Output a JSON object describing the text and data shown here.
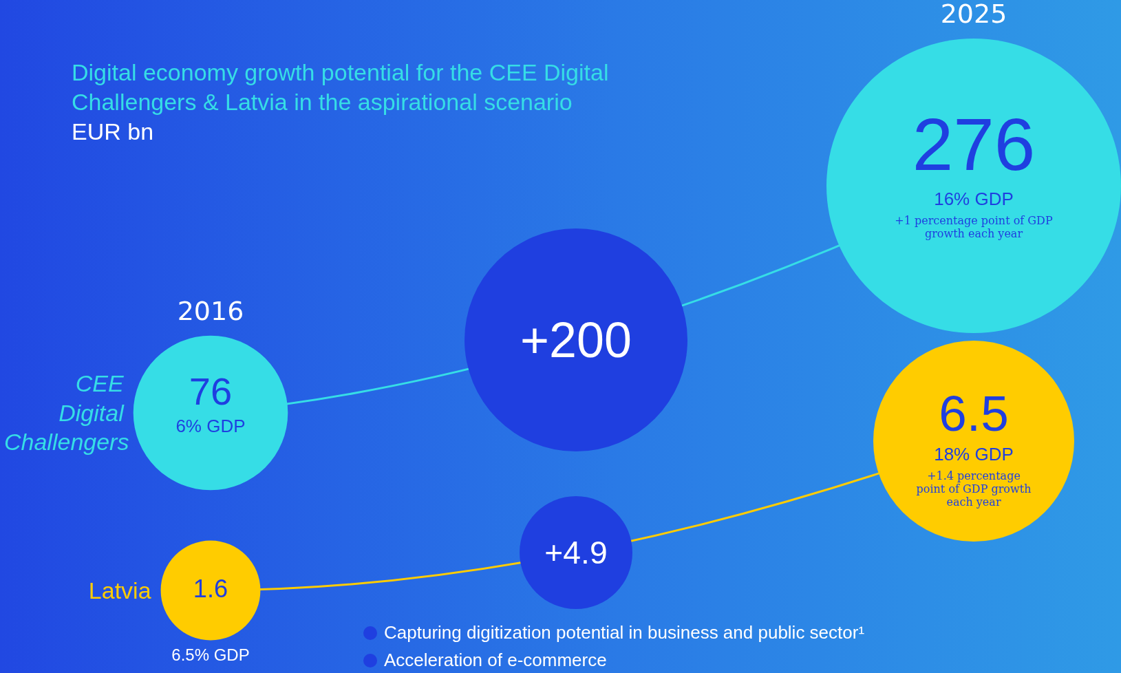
{
  "chart_data": {
    "type": "other",
    "title": "Digital economy growth potential for the CEE Digital Challengers & Latvia in the aspirational scenario",
    "subtitle": "EUR bn",
    "categories": [
      "2016",
      "2025"
    ],
    "series": [
      {
        "name": "CEE Digital Challengers",
        "color": "#36dde6",
        "values": [
          76,
          276
        ]
      },
      {
        "name": "Latvia",
        "color": "#ffcc00",
        "values": [
          1.6,
          6.5
        ]
      }
    ],
    "data_labels": true,
    "annotations": [
      "+200",
      "+4.9",
      "6% GDP",
      "16% GDP",
      "+1 percentage point of GDP growth each year",
      "6.5% GDP",
      "18% GDP",
      "+1.4 percentage point of GDP growth each year",
      "Capturing digitization potential in business and public sector¹",
      "Acceleration of e-commerce"
    ]
  }
}
